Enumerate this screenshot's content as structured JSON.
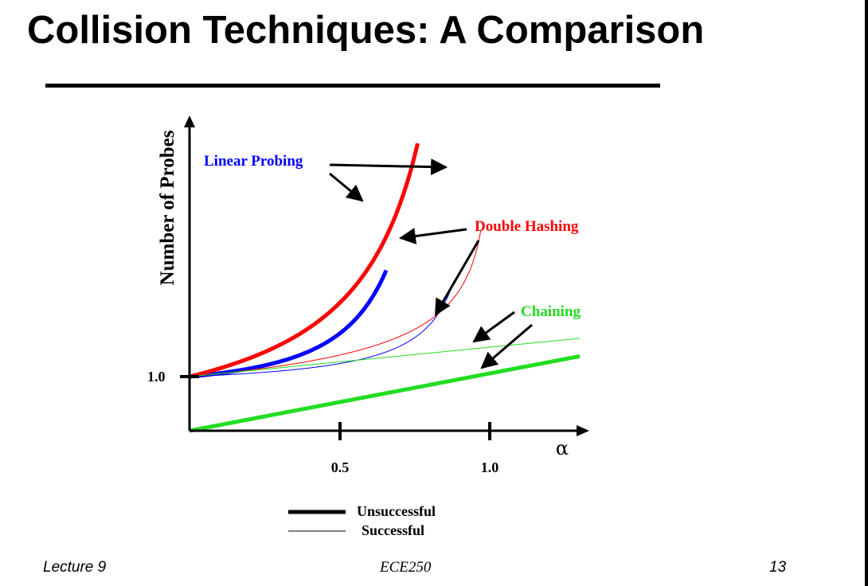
{
  "slide": {
    "title": "Collision Techniques: A Comparison",
    "footer_left": "Lecture 9",
    "footer_center": "ECE250",
    "footer_right": "13"
  },
  "colors": {
    "linear_probing": "#0000ff",
    "double_hashing": "#ff0000",
    "chaining": "#22dd22",
    "axes": "#000000"
  },
  "chart_data": {
    "type": "line",
    "title": "",
    "xlabel": "α",
    "ylabel": "Number of Probes",
    "x_ticks": [
      {
        "value": 0.5,
        "label": "0.5"
      },
      {
        "value": 1.0,
        "label": "1.0"
      }
    ],
    "y_ticks": [
      {
        "value": 1.0,
        "label": "1.0"
      }
    ],
    "xlim": [
      0,
      1.3
    ],
    "ylim": [
      0,
      10
    ],
    "grid": false,
    "annotations": [
      "Linear Probing",
      "Double Hashing",
      "Chaining"
    ],
    "legend": {
      "placement": "bottom-center",
      "entries": [
        {
          "label": "Unsuccessful",
          "style": "thick"
        },
        {
          "label": "Successful",
          "style": "thin"
        }
      ]
    },
    "series": [
      {
        "technique": "Linear Probing",
        "case": "Unsuccessful",
        "x_range": [
          0,
          0.655
        ]
      },
      {
        "technique": "Double Hashing",
        "case": "Unsuccessful",
        "x_range": [
          0,
          0.76
        ]
      },
      {
        "technique": "Linear Probing",
        "case": "Successful",
        "x_range": [
          0,
          0.88
        ]
      },
      {
        "technique": "Double Hashing",
        "case": "Successful",
        "x_range": [
          0,
          0.97
        ]
      },
      {
        "technique": "Chaining",
        "case": "Successful",
        "x_range": [
          0,
          1.3
        ]
      },
      {
        "technique": "Chaining",
        "case": "Unsuccessful",
        "x_range": [
          0,
          1.3
        ]
      }
    ]
  }
}
